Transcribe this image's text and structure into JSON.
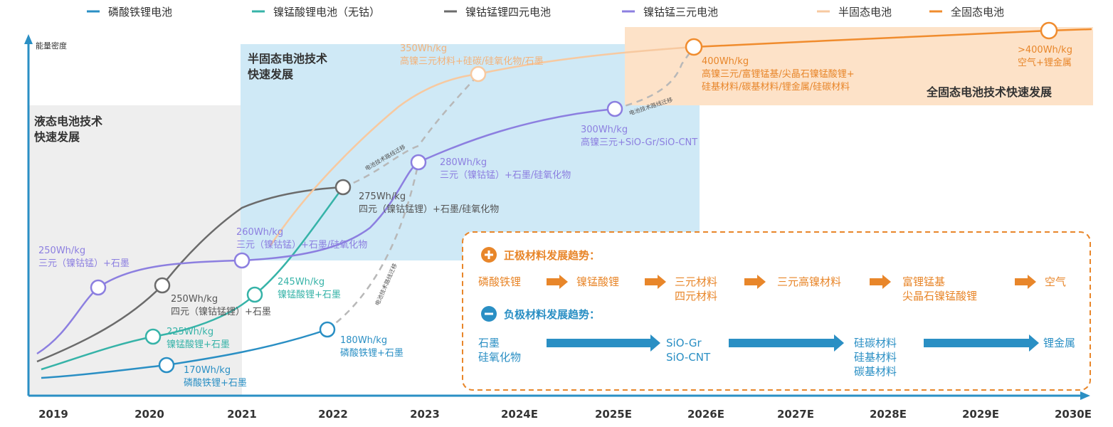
{
  "chart_data": {
    "type": "line",
    "ylabel": "能量密度",
    "x_ticks": [
      "2019",
      "2020",
      "2021",
      "2022",
      "2023",
      "2024E",
      "2025E",
      "2026E",
      "2027E",
      "2028E",
      "2029E",
      "2030E"
    ],
    "legend": [
      {
        "name": "磷酸铁锂电池",
        "color": "#2a8fc4"
      },
      {
        "name": "镍锰酸锂电池（无钴）",
        "color": "#36b3a8"
      },
      {
        "name": "镍钴锰锂四元电池",
        "color": "#6b6b6b"
      },
      {
        "name": "镍钴锰三元电池",
        "color": "#8c7fe0"
      },
      {
        "name": "半固态电池",
        "color": "#f7c9a0"
      },
      {
        "name": "全固态电池",
        "color": "#f08c2e"
      }
    ],
    "zones": [
      {
        "title_line1": "液态电池技术",
        "title_line2": "快速发展"
      },
      {
        "title_line1": "半固态电池技术",
        "title_line2": "快速发展"
      },
      {
        "title_line1": "全固态电池技术快速发展",
        "title_line2": ""
      }
    ],
    "milestones": [
      {
        "series": "磷酸铁锂电池",
        "x": "2020",
        "value": "170Wh/kg",
        "desc": "磷酸铁锂+石墨"
      },
      {
        "series": "磷酸铁锂电池",
        "x": "2022",
        "value": "180Wh/kg",
        "desc": "磷酸铁锂+石墨"
      },
      {
        "series": "镍锰酸锂电池（无钴）",
        "x": "2020",
        "value": "225Wh/kg",
        "desc": "镍锰酸锂+石墨"
      },
      {
        "series": "镍锰酸锂电池（无钴）",
        "x": "2021",
        "value": "245Wh/kg",
        "desc": "镍锰酸锂+石墨"
      },
      {
        "series": "镍钴锰锂四元电池",
        "x": "2020",
        "value": "250Wh/kg",
        "desc": "四元（镍钴锰锂）+石墨"
      },
      {
        "series": "镍钴锰锂四元电池",
        "x": "2022",
        "value": "275Wh/kg",
        "desc": "四元（镍钴锰锂）+石墨/硅氧化物"
      },
      {
        "series": "镍钴锰三元电池",
        "x": "2019",
        "value": "250Wh/kg",
        "desc": "三元（镍钴锰）+石墨"
      },
      {
        "series": "镍钴锰三元电池",
        "x": "2021",
        "value": "260Wh/kg",
        "desc": "三元（镍钴锰）+石墨/硅氧化物"
      },
      {
        "series": "镍钴锰三元电池",
        "x": "2023",
        "value": "280Wh/kg",
        "desc": "三元（镍钴锰）+石墨/硅氧化物"
      },
      {
        "series": "镍钴锰三元电池",
        "x": "2025E",
        "value": "300Wh/kg",
        "desc": "高镍三元+SiO-Gr/SiO-CNT"
      },
      {
        "series": "半固态电池",
        "x": "2023",
        "value": "350Wh/kg",
        "desc": "高镍三元材料+硅碳/硅氧化物/石墨"
      },
      {
        "series": "全固态电池",
        "x": "2026E",
        "value": "400Wh/kg",
        "desc": "高镍三元/富锂锰基/尖晶石镍锰酸锂+",
        "desc2": "硅基材料/碳基材料/锂金属/硅碳材料"
      },
      {
        "series": "全固态电池",
        "x": "2030E",
        "value": ">400Wh/kg",
        "desc": "空气+锂金属"
      }
    ],
    "migration_label": "电池技术路线迁移"
  },
  "trends": {
    "positive": {
      "title": "正极材料发展趋势：",
      "items": [
        [
          "磷酸铁锂"
        ],
        [
          "镍锰酸锂"
        ],
        [
          "三元材料",
          "四元材料"
        ],
        [
          "三元高镍材料"
        ],
        [
          "富锂锰基",
          "尖晶石镍锰酸锂"
        ],
        [
          "空气"
        ]
      ]
    },
    "negative": {
      "title": "负极材料发展趋势：",
      "items": [
        [
          "石墨",
          "硅氧化物"
        ],
        [
          "SiO-Gr",
          "SiO-CNT"
        ],
        [
          "硅碳材料",
          "硅基材料",
          "碳基材料"
        ],
        [
          "锂金属"
        ]
      ]
    },
    "colors": {
      "positive": "#e8862a",
      "negative": "#2a8fc4",
      "dash_border": "#e8862a"
    }
  }
}
